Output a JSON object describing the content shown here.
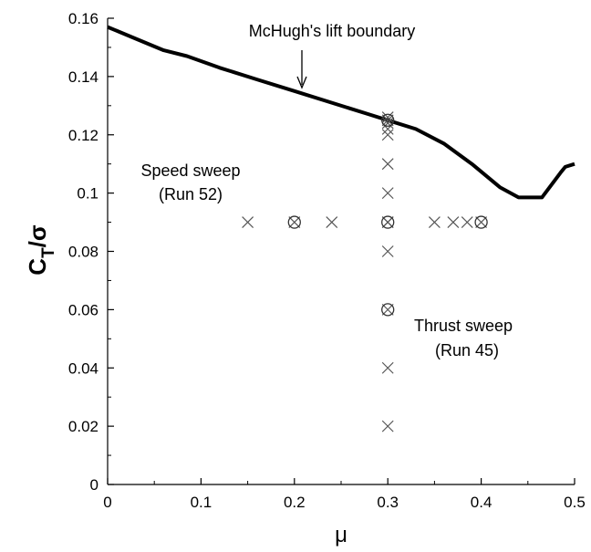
{
  "chart_data": {
    "type": "scatter",
    "xlabel": "μ",
    "ylabel": {
      "main": "C",
      "subscript": "T",
      "suffix": "/σ"
    },
    "xlim": [
      0,
      0.5
    ],
    "ylim": [
      0,
      0.16
    ],
    "xticks": [
      0,
      0.1,
      0.2,
      0.3,
      0.4,
      0.5
    ],
    "xtick_labels": [
      "0",
      "0.1",
      "0.2",
      "0.3",
      "0.4",
      "0.5"
    ],
    "yticks": [
      0,
      0.02,
      0.04,
      0.06,
      0.08,
      0.1,
      0.12,
      0.14,
      0.16
    ],
    "ytick_labels": [
      "0",
      "0.02",
      "0.04",
      "0.06",
      "0.08",
      "0.1",
      "0.12",
      "0.14",
      "0.16"
    ],
    "grid": false,
    "boundary": {
      "x": [
        0,
        0.03,
        0.06,
        0.085,
        0.12,
        0.16,
        0.2,
        0.24,
        0.28,
        0.3,
        0.33,
        0.36,
        0.39,
        0.42,
        0.44,
        0.465,
        0.485,
        0.49,
        0.5
      ],
      "y": [
        0.157,
        0.153,
        0.149,
        0.147,
        0.143,
        0.139,
        0.135,
        0.131,
        0.127,
        0.125,
        0.122,
        0.117,
        0.11,
        0.102,
        0.0985,
        0.0985,
        0.107,
        0.109,
        0.11
      ]
    },
    "speed_sweep": {
      "x": [
        0.15,
        0.2,
        0.24,
        0.3,
        0.35,
        0.37,
        0.385,
        0.4
      ],
      "y": [
        0.09,
        0.09,
        0.09,
        0.09,
        0.09,
        0.09,
        0.09,
        0.09
      ]
    },
    "thrust_sweep": {
      "x": [
        0.3,
        0.3,
        0.3,
        0.3,
        0.3,
        0.3,
        0.3,
        0.3,
        0.3,
        0.3,
        0.3,
        0.3
      ],
      "y": [
        0.02,
        0.04,
        0.06,
        0.08,
        0.09,
        0.1,
        0.11,
        0.12,
        0.122,
        0.124,
        0.125,
        0.126
      ]
    },
    "circled_points": {
      "x": [
        0.2,
        0.3,
        0.4,
        0.3,
        0.3
      ],
      "y": [
        0.09,
        0.09,
        0.09,
        0.06,
        0.125
      ]
    },
    "annotations": [
      {
        "id": "mchugh",
        "text": "McHugh's lift boundary"
      },
      {
        "id": "speed1",
        "text": "Speed sweep"
      },
      {
        "id": "speed2",
        "text": "(Run 52)"
      },
      {
        "id": "thrust1",
        "text": "Thrust sweep"
      },
      {
        "id": "thrust2",
        "text": "(Run 45)"
      }
    ]
  }
}
